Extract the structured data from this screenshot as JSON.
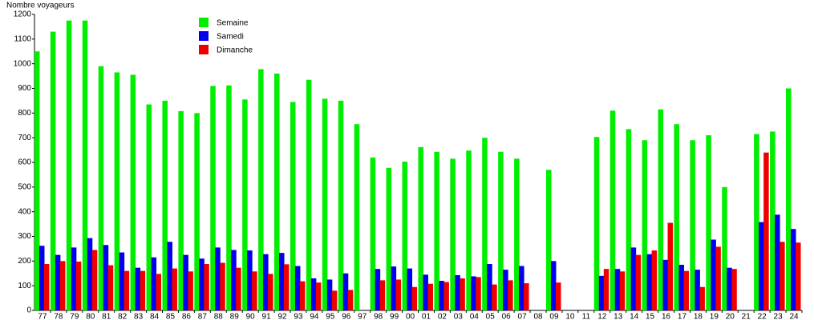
{
  "chart_data": {
    "type": "bar",
    "y_label": "Nombre voyageurs",
    "categories": [
      "77",
      "78",
      "79",
      "80",
      "81",
      "82",
      "83",
      "84",
      "85",
      "86",
      "87",
      "88",
      "89",
      "90",
      "91",
      "92",
      "93",
      "94",
      "95",
      "96",
      "97",
      "98",
      "99",
      "00",
      "01",
      "02",
      "03",
      "04",
      "05",
      "06",
      "07",
      "08",
      "09",
      "10",
      "11",
      "12",
      "13",
      "14",
      "15",
      "16",
      "17",
      "18",
      "19",
      "20",
      "21",
      "22",
      "23",
      "24"
    ],
    "series": [
      {
        "name": "Semaine",
        "color": "#00ee00",
        "values": [
          1050,
          1130,
          1175,
          1175,
          990,
          965,
          955,
          835,
          850,
          808,
          800,
          910,
          912,
          855,
          978,
          960,
          845,
          935,
          858,
          850,
          755,
          620,
          578,
          603,
          662,
          643,
          615,
          648,
          700,
          643,
          615,
          null,
          570,
          null,
          null,
          703,
          810,
          735,
          690,
          815,
          755,
          690,
          710,
          500,
          null,
          715,
          725,
          900
        ]
      },
      {
        "name": "Samedi",
        "color": "#0000ee",
        "values": [
          262,
          225,
          255,
          293,
          265,
          235,
          173,
          215,
          278,
          225,
          210,
          255,
          245,
          243,
          228,
          233,
          180,
          130,
          125,
          150,
          null,
          168,
          178,
          170,
          145,
          120,
          143,
          138,
          188,
          165,
          180,
          null,
          200,
          null,
          null,
          140,
          168,
          255,
          228,
          205,
          185,
          165,
          287,
          173,
          null,
          358,
          388,
          330
        ]
      },
      {
        "name": "Dimanche",
        "color": "#ee0000",
        "values": [
          188,
          200,
          198,
          245,
          183,
          160,
          160,
          148,
          170,
          158,
          188,
          193,
          173,
          158,
          148,
          187,
          118,
          113,
          80,
          83,
          null,
          122,
          125,
          95,
          108,
          115,
          130,
          135,
          105,
          122,
          110,
          null,
          113,
          null,
          null,
          168,
          158,
          225,
          243,
          355,
          160,
          95,
          258,
          168,
          null,
          640,
          278,
          275
        ]
      }
    ],
    "ylim": [
      0,
      1200
    ],
    "yticks": [
      0,
      100,
      200,
      300,
      400,
      500,
      600,
      700,
      800,
      900,
      1000,
      1100,
      1200
    ],
    "legend": "top-left"
  }
}
